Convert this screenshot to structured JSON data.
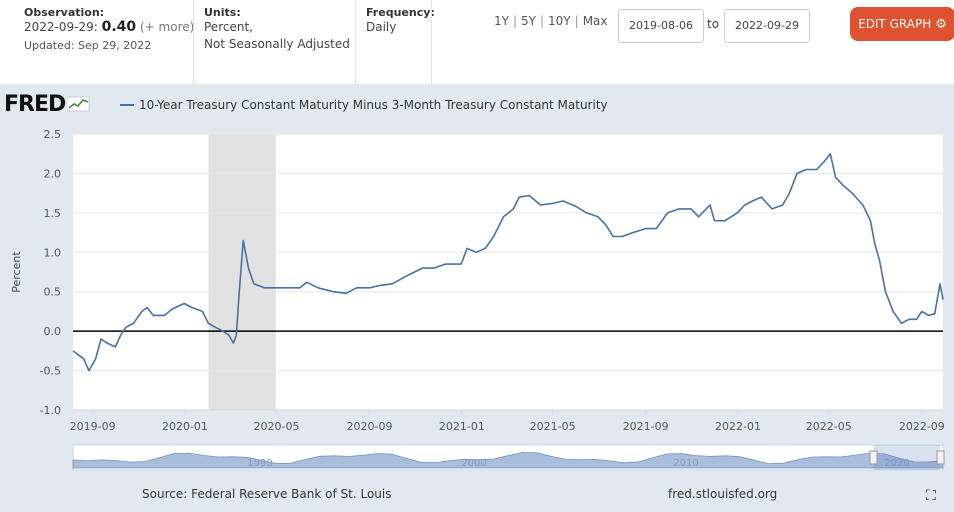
{
  "header": {
    "observation_label": "Observation:",
    "observation_date": "2022-09-29:",
    "observation_value": "0.40",
    "observation_change": "(+ more)",
    "updated": "Updated: Sep 29, 2022",
    "units_label": "Units:",
    "units_line1": "Percent,",
    "units_line2": "Not Seasonally Adjusted",
    "frequency_label": "Frequency:",
    "frequency_value": "Daily",
    "ranges": [
      "1Y",
      "5Y",
      "10Y",
      "Max"
    ],
    "date_from": "2019-08-06",
    "date_to_label": "to",
    "date_to": "2022-09-29",
    "edit_button": "EDIT GRAPH",
    "logo": "FRED"
  },
  "footer": {
    "source": "Source: Federal Reserve Bank of St. Louis",
    "site": "fred.stlouisfed.org"
  },
  "colors": {
    "line": "#4572a7",
    "recession": "#e1e1e1",
    "accent": "#e0522f",
    "background": "#e1e9f0"
  },
  "chart_data": {
    "type": "line",
    "title": "",
    "legend": "10-Year Treasury Constant Maturity Minus 3-Month Treasury Constant Maturity",
    "ylabel": "Percent",
    "xlabel": "",
    "ylim": [
      -1.0,
      2.5
    ],
    "xlim": [
      "2019-08-06",
      "2022-09-29"
    ],
    "y_ticks": [
      "-1.0",
      "-0.5",
      "0.0",
      "0.5",
      "1.0",
      "1.5",
      "2.0",
      "2.5"
    ],
    "x_ticks": [
      "2019-09",
      "2020-01",
      "2020-05",
      "2020-09",
      "2021-01",
      "2021-05",
      "2021-09",
      "2022-01",
      "2022-05",
      "2022-09"
    ],
    "recession": [
      "2020-02-01",
      "2020-04-30"
    ],
    "navigator_labels": [
      "1990",
      "2000",
      "2010",
      "2020"
    ],
    "series": [
      {
        "name": "10-Year Treasury Constant Maturity Minus 3-Month Treasury Constant Maturity",
        "points": [
          [
            "2019-08-06",
            -0.25
          ],
          [
            "2019-08-13",
            -0.3
          ],
          [
            "2019-08-20",
            -0.35
          ],
          [
            "2019-08-27",
            -0.5
          ],
          [
            "2019-09-05",
            -0.35
          ],
          [
            "2019-09-12",
            -0.1
          ],
          [
            "2019-09-20",
            -0.15
          ],
          [
            "2019-10-01",
            -0.2
          ],
          [
            "2019-10-08",
            -0.05
          ],
          [
            "2019-10-15",
            0.05
          ],
          [
            "2019-10-25",
            0.1
          ],
          [
            "2019-11-05",
            0.25
          ],
          [
            "2019-11-12",
            0.3
          ],
          [
            "2019-11-20",
            0.2
          ],
          [
            "2019-12-05",
            0.2
          ],
          [
            "2019-12-15",
            0.28
          ],
          [
            "2019-12-31",
            0.35
          ],
          [
            "2020-01-10",
            0.3
          ],
          [
            "2020-01-24",
            0.25
          ],
          [
            "2020-02-01",
            0.1
          ],
          [
            "2020-02-10",
            0.05
          ],
          [
            "2020-02-20",
            0.0
          ],
          [
            "2020-02-28",
            -0.05
          ],
          [
            "2020-03-05",
            -0.15
          ],
          [
            "2020-03-09",
            -0.05
          ],
          [
            "2020-03-12",
            0.4
          ],
          [
            "2020-03-18",
            1.15
          ],
          [
            "2020-03-25",
            0.8
          ],
          [
            "2020-04-01",
            0.6
          ],
          [
            "2020-04-15",
            0.55
          ],
          [
            "2020-05-01",
            0.55
          ],
          [
            "2020-05-15",
            0.55
          ],
          [
            "2020-06-01",
            0.55
          ],
          [
            "2020-06-10",
            0.62
          ],
          [
            "2020-06-25",
            0.55
          ],
          [
            "2020-07-15",
            0.5
          ],
          [
            "2020-08-01",
            0.48
          ],
          [
            "2020-08-15",
            0.55
          ],
          [
            "2020-09-01",
            0.55
          ],
          [
            "2020-09-15",
            0.58
          ],
          [
            "2020-10-01",
            0.6
          ],
          [
            "2020-10-20",
            0.7
          ],
          [
            "2020-11-10",
            0.8
          ],
          [
            "2020-11-25",
            0.8
          ],
          [
            "2020-12-10",
            0.85
          ],
          [
            "2020-12-31",
            0.85
          ],
          [
            "2021-01-08",
            1.05
          ],
          [
            "2021-01-20",
            1.0
          ],
          [
            "2021-02-01",
            1.05
          ],
          [
            "2021-02-12",
            1.2
          ],
          [
            "2021-02-25",
            1.45
          ],
          [
            "2021-03-10",
            1.55
          ],
          [
            "2021-03-18",
            1.7
          ],
          [
            "2021-03-31",
            1.72
          ],
          [
            "2021-04-15",
            1.6
          ],
          [
            "2021-05-01",
            1.62
          ],
          [
            "2021-05-15",
            1.65
          ],
          [
            "2021-06-01",
            1.58
          ],
          [
            "2021-06-15",
            1.5
          ],
          [
            "2021-06-30",
            1.45
          ],
          [
            "2021-07-10",
            1.35
          ],
          [
            "2021-07-20",
            1.2
          ],
          [
            "2021-08-01",
            1.2
          ],
          [
            "2021-08-15",
            1.25
          ],
          [
            "2021-09-01",
            1.3
          ],
          [
            "2021-09-15",
            1.3
          ],
          [
            "2021-09-30",
            1.5
          ],
          [
            "2021-10-15",
            1.55
          ],
          [
            "2021-10-31",
            1.55
          ],
          [
            "2021-11-10",
            1.45
          ],
          [
            "2021-11-25",
            1.6
          ],
          [
            "2021-12-01",
            1.4
          ],
          [
            "2021-12-15",
            1.4
          ],
          [
            "2021-12-31",
            1.5
          ],
          [
            "2022-01-10",
            1.6
          ],
          [
            "2022-01-20",
            1.65
          ],
          [
            "2022-02-01",
            1.7
          ],
          [
            "2022-02-15",
            1.55
          ],
          [
            "2022-03-01",
            1.6
          ],
          [
            "2022-03-10",
            1.75
          ],
          [
            "2022-03-20",
            2.0
          ],
          [
            "2022-04-01",
            2.05
          ],
          [
            "2022-04-15",
            2.05
          ],
          [
            "2022-04-25",
            2.15
          ],
          [
            "2022-05-03",
            2.25
          ],
          [
            "2022-05-10",
            1.95
          ],
          [
            "2022-05-20",
            1.85
          ],
          [
            "2022-06-01",
            1.75
          ],
          [
            "2022-06-15",
            1.6
          ],
          [
            "2022-06-25",
            1.4
          ],
          [
            "2022-07-01",
            1.1
          ],
          [
            "2022-07-07",
            0.9
          ],
          [
            "2022-07-15",
            0.5
          ],
          [
            "2022-07-25",
            0.25
          ],
          [
            "2022-08-05",
            0.1
          ],
          [
            "2022-08-15",
            0.15
          ],
          [
            "2022-08-25",
            0.15
          ],
          [
            "2022-09-01",
            0.25
          ],
          [
            "2022-09-10",
            0.2
          ],
          [
            "2022-09-18",
            0.22
          ],
          [
            "2022-09-25",
            0.6
          ],
          [
            "2022-09-29",
            0.4
          ]
        ]
      }
    ]
  }
}
